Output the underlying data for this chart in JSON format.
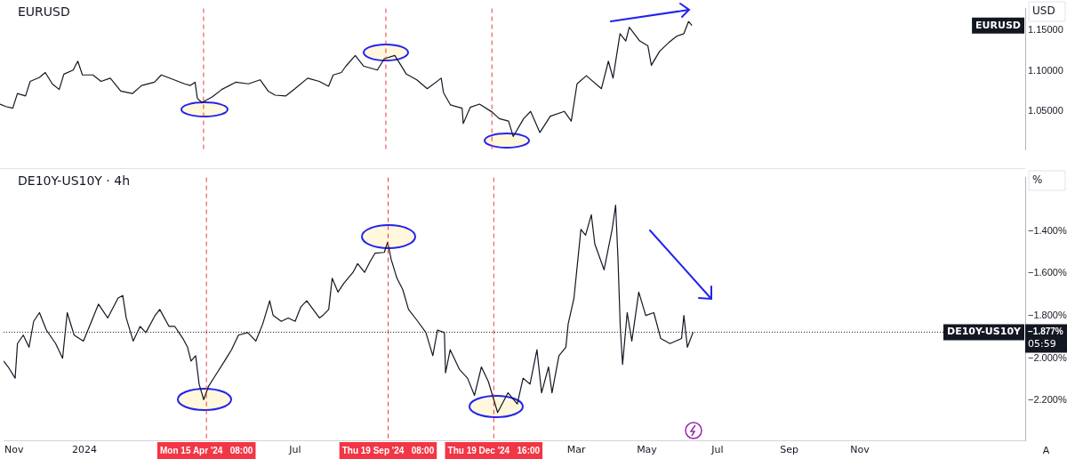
{
  "chart_data": [
    {
      "type": "line",
      "title": "EURUSD",
      "ylabel": "USD",
      "tick_labels": "y",
      "xlim": [
        "2023-10-23",
        "2026-03-24"
      ],
      "ylim": [
        1.003,
        1.177
      ],
      "yticks": [
        {
          "value": 1.05,
          "label": "1.05000"
        },
        {
          "value": 1.1,
          "label": "1.10000"
        },
        {
          "value": 1.15,
          "label": "1.15000"
        }
      ],
      "series": [
        {
          "name": "EURUSD",
          "color": "#131722",
          "x": [
            "2023-10-23",
            "2023-10-28",
            "2023-11-03",
            "2023-11-07",
            "2023-11-14",
            "2023-11-18",
            "2023-11-26",
            "2023-12-01",
            "2023-12-07",
            "2023-12-13",
            "2023-12-17",
            "2023-12-25",
            "2023-12-29",
            "2024-01-02",
            "2024-01-11",
            "2024-01-18",
            "2024-01-26",
            "2024-02-04",
            "2024-02-14",
            "2024-02-22",
            "2024-03-04",
            "2024-03-10",
            "2024-03-21",
            "2024-03-30",
            "2024-04-04",
            "2024-04-08",
            "2024-04-10",
            "2024-04-14",
            "2024-04-23",
            "2024-05-01",
            "2024-05-13",
            "2024-05-24",
            "2024-06-03",
            "2024-06-10",
            "2024-06-16",
            "2024-06-25",
            "2024-07-03",
            "2024-07-14",
            "2024-07-24",
            "2024-08-01",
            "2024-08-05",
            "2024-08-12",
            "2024-08-16",
            "2024-08-24",
            "2024-08-31",
            "2024-09-12",
            "2024-09-18",
            "2024-09-27",
            "2024-10-01",
            "2024-10-07",
            "2024-10-16",
            "2024-10-25",
            "2024-11-06",
            "2024-11-08",
            "2024-11-14",
            "2024-11-24",
            "2024-11-25",
            "2024-12-01",
            "2024-12-09",
            "2024-12-20",
            "2024-12-26",
            "2025-01-03",
            "2025-01-07",
            "2025-01-16",
            "2025-01-22",
            "2025-01-30",
            "2025-02-08",
            "2025-02-20",
            "2025-02-26",
            "2025-03-03",
            "2025-03-11",
            "2025-03-24",
            "2025-03-30",
            "2025-04-03",
            "2025-04-09",
            "2025-04-14",
            "2025-04-17",
            "2025-04-26",
            "2025-05-03",
            "2025-05-06",
            "2025-05-13",
            "2025-05-21",
            "2025-05-28",
            "2025-06-03",
            "2025-06-07",
            "2025-06-10"
          ],
          "values": [
            1.059,
            1.056,
            1.054,
            1.072,
            1.069,
            1.087,
            1.092,
            1.098,
            1.084,
            1.077,
            1.096,
            1.101,
            1.112,
            1.095,
            1.095,
            1.087,
            1.091,
            1.075,
            1.072,
            1.082,
            1.086,
            1.095,
            1.089,
            1.084,
            1.082,
            1.086,
            1.066,
            1.061,
            1.068,
            1.077,
            1.086,
            1.084,
            1.089,
            1.075,
            1.07,
            1.069,
            1.078,
            1.091,
            1.087,
            1.081,
            1.095,
            1.098,
            1.106,
            1.119,
            1.106,
            1.101,
            1.115,
            1.119,
            1.11,
            1.096,
            1.089,
            1.078,
            1.091,
            1.073,
            1.058,
            1.054,
            1.035,
            1.055,
            1.059,
            1.049,
            1.041,
            1.038,
            1.019,
            1.041,
            1.05,
            1.024,
            1.044,
            1.05,
            1.038,
            1.084,
            1.094,
            1.078,
            1.112,
            1.091,
            1.146,
            1.137,
            1.154,
            1.137,
            1.131,
            1.107,
            1.124,
            1.135,
            1.143,
            1.146,
            1.161,
            1.156
          ]
        }
      ],
      "ref_lines": [
        {
          "axis": "x",
          "value": "2024-04-15T08:00",
          "color": "#f23645",
          "line_style": "dashed"
        },
        {
          "axis": "x",
          "value": "2024-09-19T08:00",
          "color": "#f23645",
          "line_style": "dashed"
        },
        {
          "axis": "x",
          "value": "2024-12-19T16:00",
          "color": "#f23645",
          "line_style": "dashed"
        }
      ]
    },
    {
      "type": "line",
      "title": "DE10Y-US10Y · 4h",
      "ylabel": "%",
      "xlim": [
        "2023-10-23",
        "2026-03-24"
      ],
      "xticks": [
        {
          "value": "2023-11-01",
          "label": "Nov"
        },
        {
          "value": "2024-01-01",
          "label": "2024"
        },
        {
          "value": "2024-07-01",
          "label": "Jul"
        },
        {
          "value": "2025-03-01",
          "label": "Mar"
        },
        {
          "value": "2025-05-01",
          "label": "May"
        },
        {
          "value": "2025-07-01",
          "label": "Jul"
        },
        {
          "value": "2025-09-01",
          "label": "Sep"
        },
        {
          "value": "2025-11-01",
          "label": "Nov"
        }
      ],
      "ylim": [
        -2.387,
        -1.148
      ],
      "yticks": [
        {
          "value": -2.2,
          "label": "−2.200%"
        },
        {
          "value": -2.0,
          "label": "−2.000%"
        },
        {
          "value": -1.8,
          "label": "−1.800%"
        },
        {
          "value": -1.6,
          "label": "−1.600%"
        },
        {
          "value": -1.4,
          "label": "−1.400%"
        }
      ],
      "series": [
        {
          "name": "DE10Y-US10Y",
          "color": "#131722",
          "x": [
            "2023-10-23",
            "2023-10-27",
            "2023-11-02",
            "2023-11-04",
            "2023-11-09",
            "2023-11-14",
            "2023-11-18",
            "2023-11-23",
            "2023-11-29",
            "2023-12-07",
            "2023-12-13",
            "2023-12-17",
            "2023-12-23",
            "2023-12-31",
            "2024-01-07",
            "2024-01-13",
            "2024-01-21",
            "2024-01-30",
            "2024-02-03",
            "2024-02-06",
            "2024-02-12",
            "2024-02-18",
            "2024-02-23",
            "2024-03-02",
            "2024-03-06",
            "2024-03-14",
            "2024-03-19",
            "2024-03-26",
            "2024-03-30",
            "2024-04-02",
            "2024-04-06",
            "2024-04-09",
            "2024-04-13",
            "2024-04-17",
            "2024-04-23",
            "2024-05-01",
            "2024-05-07",
            "2024-05-13",
            "2024-05-21",
            "2024-05-28",
            "2024-06-03",
            "2024-06-09",
            "2024-06-12",
            "2024-06-19",
            "2024-06-25",
            "2024-07-01",
            "2024-07-06",
            "2024-07-11",
            "2024-07-22",
            "2024-07-25",
            "2024-07-30",
            "2024-08-02",
            "2024-08-07",
            "2024-08-12",
            "2024-08-20",
            "2024-08-24",
            "2024-08-30",
            "2024-09-04",
            "2024-09-08",
            "2024-09-16",
            "2024-09-19",
            "2024-09-22",
            "2024-09-27",
            "2024-10-02",
            "2024-10-07",
            "2024-10-15",
            "2024-10-22",
            "2024-10-28",
            "2024-11-01",
            "2024-11-07",
            "2024-11-08",
            "2024-11-12",
            "2024-11-20",
            "2024-11-27",
            "2024-12-03",
            "2024-12-09",
            "2024-12-15",
            "2024-12-23",
            "2025-01-01",
            "2025-01-09",
            "2025-01-14",
            "2025-01-20",
            "2025-01-26",
            "2025-01-30",
            "2025-02-05",
            "2025-02-08",
            "2025-02-14",
            "2025-02-20",
            "2025-02-22",
            "2025-02-27",
            "2025-03-02",
            "2025-03-05",
            "2025-03-09",
            "2025-03-14",
            "2025-03-17",
            "2025-03-25",
            "2025-03-29",
            "2025-04-01",
            "2025-04-04",
            "2025-04-06",
            "2025-04-08",
            "2025-04-10",
            "2025-04-14",
            "2025-04-18",
            "2025-04-24",
            "2025-04-30",
            "2025-05-07",
            "2025-05-13",
            "2025-05-21",
            "2025-05-31",
            "2025-06-02",
            "2025-06-05",
            "2025-06-10"
          ],
          "values": [
            -2.013,
            -2.041,
            -2.094,
            -1.931,
            -1.891,
            -1.948,
            -1.826,
            -1.785,
            -1.867,
            -1.931,
            -2.0,
            -1.785,
            -1.891,
            -1.919,
            -1.826,
            -1.745,
            -1.81,
            -1.716,
            -1.704,
            -1.81,
            -1.919,
            -1.85,
            -1.879,
            -1.798,
            -1.77,
            -1.85,
            -1.85,
            -1.907,
            -1.948,
            -2.013,
            -1.988,
            -2.122,
            -2.195,
            -2.134,
            -2.082,
            -2.013,
            -1.96,
            -1.891,
            -1.879,
            -1.919,
            -1.838,
            -1.729,
            -1.798,
            -1.826,
            -1.81,
            -1.826,
            -1.757,
            -1.729,
            -1.81,
            -1.798,
            -1.77,
            -1.623,
            -1.688,
            -1.647,
            -1.595,
            -1.554,
            -1.595,
            -1.542,
            -1.505,
            -1.501,
            -1.453,
            -1.534,
            -1.623,
            -1.676,
            -1.77,
            -1.826,
            -1.879,
            -1.988,
            -1.867,
            -1.879,
            -2.069,
            -1.96,
            -2.053,
            -2.094,
            -2.175,
            -2.041,
            -2.11,
            -2.256,
            -2.163,
            -2.216,
            -2.094,
            -2.122,
            -1.96,
            -2.163,
            -2.041,
            -2.163,
            -1.988,
            -1.948,
            -1.838,
            -1.716,
            -1.554,
            -1.392,
            -1.42,
            -1.323,
            -1.461,
            -1.583,
            -1.473,
            -1.392,
            -1.278,
            -1.526,
            -1.85,
            -2.029,
            -1.785,
            -1.919,
            -1.688,
            -1.798,
            -1.785,
            -1.907,
            -1.931,
            -1.907,
            -1.798,
            -1.948,
            -1.877
          ]
        }
      ],
      "ref_lines": [
        {
          "axis": "x",
          "value": "2024-04-15T08:00",
          "label": "Mon 15 Apr '24   08:00",
          "color": "#f23645",
          "line_style": "dashed"
        },
        {
          "axis": "x",
          "value": "2024-09-19T08:00",
          "label": "Thu 19 Sep '24   08:00",
          "color": "#f23645",
          "line_style": "dashed"
        },
        {
          "axis": "x",
          "value": "2024-12-19T16:00",
          "label": "Thu 19 Dec '24   16:00",
          "color": "#f23645",
          "line_style": "dashed"
        },
        {
          "axis": "y",
          "value": -1.877,
          "label": "−1.877%",
          "color": "#131722",
          "line_style": "dotted"
        }
      ],
      "annotations": [
        "05:59",
        "A"
      ]
    }
  ]
}
